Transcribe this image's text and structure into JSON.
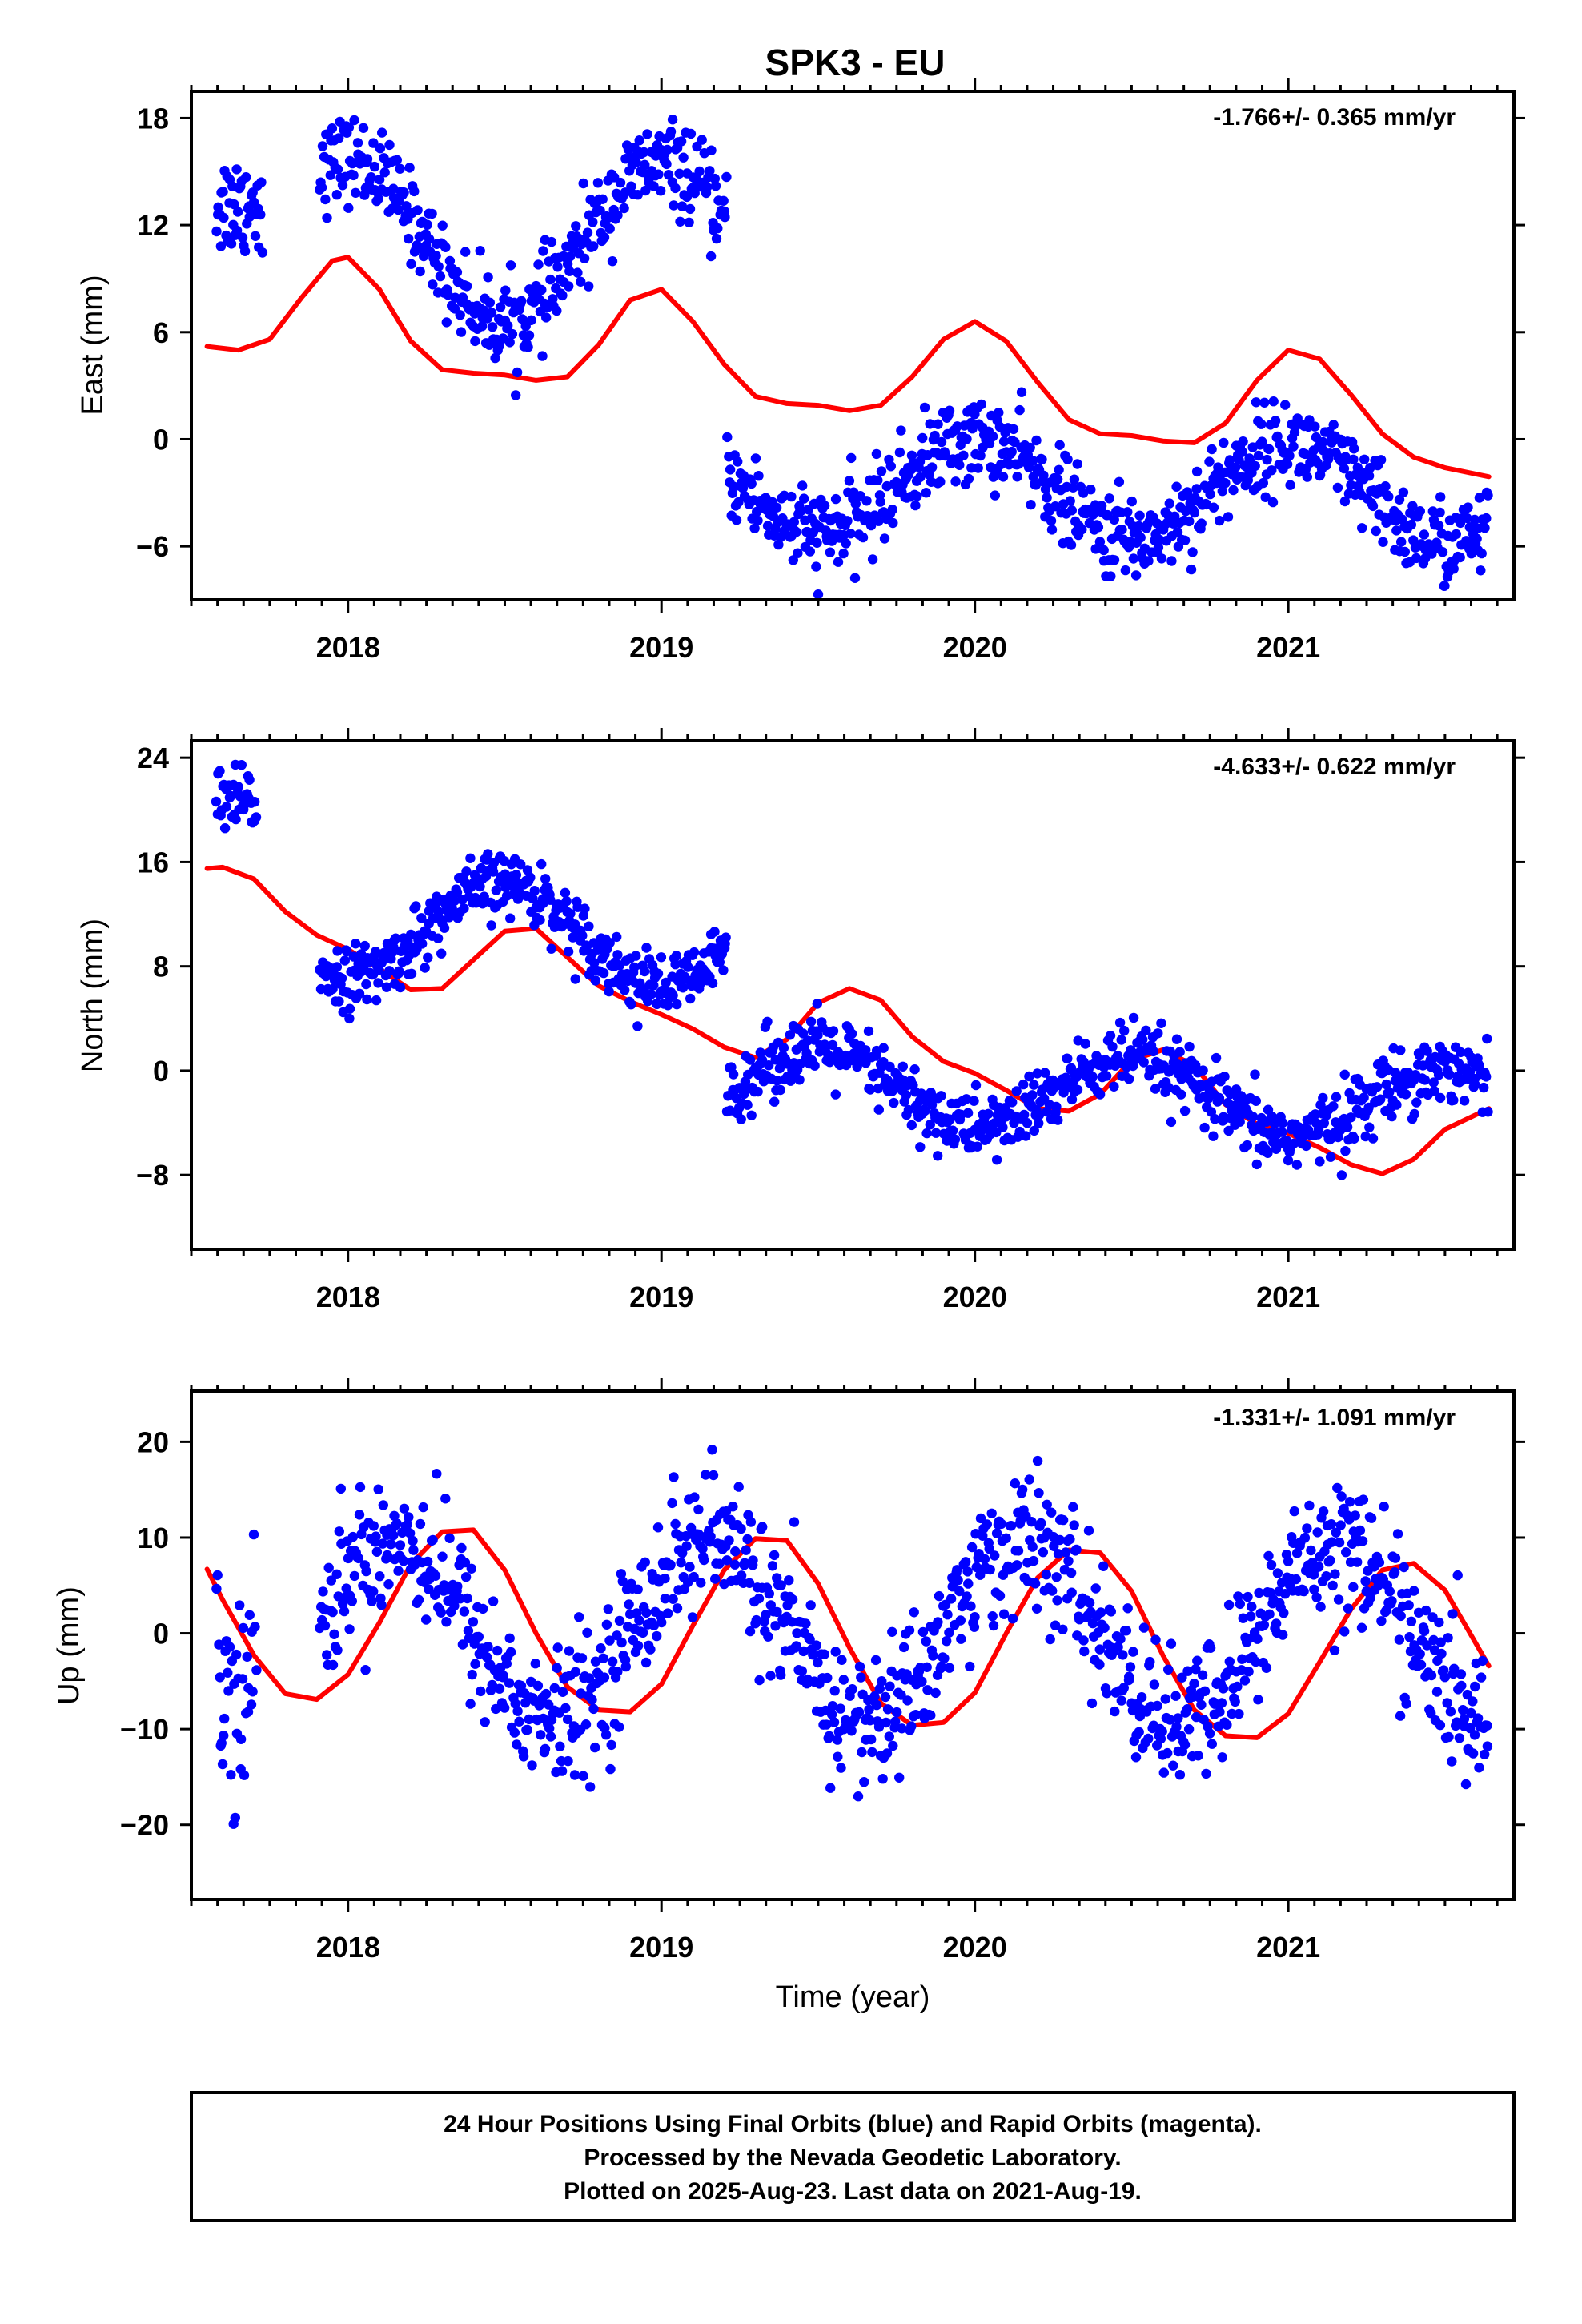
{
  "title": "SPK3 - EU",
  "colors": {
    "final_orbits": "#0000ff",
    "model": "#ff0000",
    "frame": "#000000"
  },
  "footer": {
    "line1": "24 Hour Positions Using Final Orbits (blue) and Rapid Orbits (magenta).",
    "line2": "Processed by the Nevada Geodetic Laboratory.",
    "line3": "Plotted on 2025-Aug-23. Last data on 2021-Aug-19."
  },
  "chart_data": [
    {
      "type": "scatter",
      "component": "East",
      "ylabel": "East (mm)",
      "xlabel": "",
      "rate_label": "-1.766+/- 0.365 mm/yr",
      "xlim": [
        2017.5,
        2021.72
      ],
      "ylim": [
        -9,
        19.5
      ],
      "xticks": [
        2018,
        2019,
        2020,
        2021
      ],
      "yticks": [
        -6,
        0,
        6,
        12,
        18
      ],
      "grid": false,
      "data_segments": [
        {
          "start": 2017.58,
          "end": 2017.73,
          "offset": 13.2,
          "amp": 0.0,
          "phase": 0.4,
          "noise": 1.5
        },
        {
          "start": 2017.91,
          "end": 2019.21,
          "offset": 11.2,
          "amp": 4.5,
          "phase": 0.0,
          "noise": 1.2
        },
        {
          "start": 2019.21,
          "end": 2021.64,
          "offset": -2.5,
          "amp": 2.7,
          "phase": 0.0,
          "noise": 1.2
        }
      ],
      "trend_rate": -1.766,
      "model_curve": {
        "x": [
          2017.55,
          2017.65,
          2017.75,
          2017.85,
          2017.95,
          2018.0,
          2018.1,
          2018.2,
          2018.3,
          2018.4,
          2018.5,
          2018.6,
          2018.7,
          2018.8,
          2018.9,
          2019.0,
          2019.1,
          2019.2,
          2019.3,
          2019.4,
          2019.5,
          2019.6,
          2019.7,
          2019.8,
          2019.9,
          2020.0,
          2020.1,
          2020.2,
          2020.3,
          2020.4,
          2020.5,
          2020.6,
          2020.7,
          2020.8,
          2020.9,
          2021.0,
          2021.1,
          2021.2,
          2021.3,
          2021.4,
          2021.5,
          2021.64
        ],
        "y": [
          5.2,
          5.0,
          5.6,
          7.9,
          10.0,
          10.2,
          8.4,
          5.5,
          3.9,
          3.7,
          3.6,
          3.3,
          3.5,
          5.3,
          7.8,
          8.4,
          6.6,
          4.2,
          2.4,
          2.0,
          1.9,
          1.6,
          1.9,
          3.5,
          5.6,
          6.6,
          5.5,
          3.2,
          1.1,
          0.3,
          0.2,
          -0.1,
          -0.2,
          0.9,
          3.3,
          5.0,
          4.5,
          2.5,
          0.3,
          -1.0,
          -1.6,
          -2.1
        ]
      }
    },
    {
      "type": "scatter",
      "component": "North",
      "ylabel": "North (mm)",
      "xlabel": "",
      "rate_label": "-4.633+/- 0.622 mm/yr",
      "xlim": [
        2017.5,
        2021.72
      ],
      "ylim": [
        -13.7,
        25.3
      ],
      "xticks": [
        2018,
        2019,
        2020,
        2021
      ],
      "yticks": [
        -8,
        0,
        8,
        16,
        24
      ],
      "grid": false,
      "data_segments": [
        {
          "start": 2017.58,
          "end": 2017.71,
          "offset": 20.5,
          "amp": 0.0,
          "phase": 0.5,
          "noise": 1.3
        },
        {
          "start": 2017.91,
          "end": 2019.21,
          "offset": 11.0,
          "amp": 3.8,
          "phase": 0.5,
          "noise": 1.2
        },
        {
          "start": 2019.21,
          "end": 2021.64,
          "offset": -1.0,
          "amp": 2.8,
          "phase": 0.5,
          "noise": 1.3
        }
      ],
      "trend_rate": -4.633,
      "model_curve": {
        "x": [
          2017.55,
          2017.6,
          2017.7,
          2017.8,
          2017.9,
          2018.0,
          2018.1,
          2018.2,
          2018.3,
          2018.4,
          2018.5,
          2018.6,
          2018.7,
          2018.8,
          2018.9,
          2019.0,
          2019.1,
          2019.2,
          2019.3,
          2019.4,
          2019.5,
          2019.6,
          2019.7,
          2019.8,
          2019.9,
          2020.0,
          2020.1,
          2020.2,
          2020.3,
          2020.4,
          2020.5,
          2020.6,
          2020.7,
          2020.8,
          2020.9,
          2021.0,
          2021.1,
          2021.2,
          2021.3,
          2021.4,
          2021.5,
          2021.64
        ],
        "y": [
          15.5,
          15.6,
          14.7,
          12.2,
          10.4,
          9.3,
          7.8,
          6.2,
          6.3,
          8.5,
          10.7,
          10.9,
          8.7,
          6.5,
          5.3,
          4.3,
          3.2,
          1.8,
          1.0,
          2.4,
          5.2,
          6.3,
          5.4,
          2.6,
          0.7,
          -0.2,
          -1.5,
          -2.9,
          -3.1,
          -1.8,
          0.8,
          1.6,
          0.4,
          -2.6,
          -4.1,
          -4.8,
          -5.9,
          -7.2,
          -7.9,
          -6.8,
          -4.5,
          -2.9
        ]
      }
    },
    {
      "type": "scatter",
      "component": "Up",
      "ylabel": "Up (mm)",
      "xlabel": "Time (year)",
      "rate_label": "-1.331+/- 1.091 mm/yr",
      "xlim": [
        2017.5,
        2021.72
      ],
      "ylim": [
        -27.8,
        25.3
      ],
      "xticks": [
        2018,
        2019,
        2020,
        2021
      ],
      "yticks": [
        -20,
        -10,
        0,
        10,
        20
      ],
      "grid": false,
      "data_segments": [
        {
          "start": 2017.58,
          "end": 2017.71,
          "offset": -4.0,
          "amp": 0.0,
          "phase": 0.0,
          "noise": 6.0
        },
        {
          "start": 2017.91,
          "end": 2021.64,
          "offset": 0.5,
          "amp": 9.5,
          "phase": 0.15,
          "noise": 3.6
        }
      ],
      "trend_rate": -1.331,
      "model_curve": {
        "x": [
          2017.55,
          2017.6,
          2017.7,
          2017.8,
          2017.9,
          2018.0,
          2018.1,
          2018.2,
          2018.3,
          2018.4,
          2018.5,
          2018.6,
          2018.7,
          2018.8,
          2018.9,
          2019.0,
          2019.1,
          2019.2,
          2019.3,
          2019.4,
          2019.5,
          2019.6,
          2019.7,
          2019.8,
          2019.9,
          2020.0,
          2020.1,
          2020.2,
          2020.3,
          2020.4,
          2020.5,
          2020.6,
          2020.7,
          2020.8,
          2020.9,
          2021.0,
          2021.1,
          2021.2,
          2021.3,
          2021.4,
          2021.5,
          2021.64
        ],
        "y": [
          6.7,
          3.5,
          -2.3,
          -6.3,
          -6.9,
          -4.3,
          1.1,
          7.2,
          10.6,
          10.8,
          6.6,
          0.0,
          -5.6,
          -8.0,
          -8.2,
          -5.3,
          0.8,
          6.6,
          9.9,
          9.7,
          5.2,
          -1.5,
          -7.3,
          -9.6,
          -9.3,
          -6.2,
          0.0,
          5.8,
          8.7,
          8.4,
          4.4,
          -2.3,
          -8.0,
          -10.7,
          -10.9,
          -8.4,
          -3.0,
          2.5,
          6.6,
          7.3,
          4.5,
          -3.4
        ]
      }
    }
  ]
}
